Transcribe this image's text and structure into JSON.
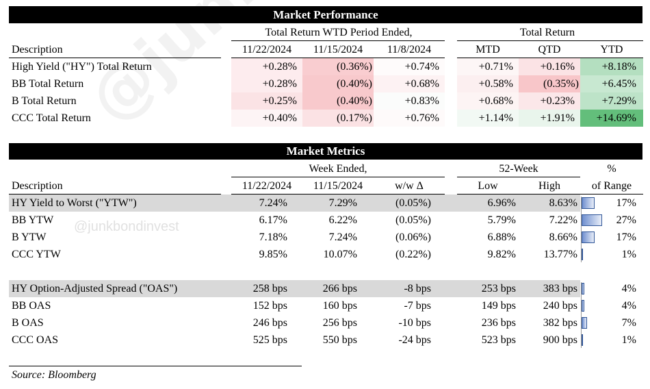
{
  "watermark": "@junkbondinvest",
  "perf": {
    "title": "Market Performance",
    "group_wtd": "Total Return WTD Period Ended,",
    "group_total": "Total Return",
    "col_desc": "Description",
    "cols": [
      "11/22/2024",
      "11/15/2024",
      "11/8/2024",
      "MTD",
      "QTD",
      "YTD"
    ],
    "rows": [
      {
        "label": "High Yield (\"HY\") Total Return",
        "v": [
          "+0.28%",
          "(0.36%)",
          "+0.74%",
          "+0.71%",
          "+0.16%",
          "+8.18%"
        ]
      },
      {
        "label": "BB Total Return",
        "v": [
          "+0.28%",
          "(0.40%)",
          "+0.68%",
          "+0.58%",
          "(0.35%)",
          "+6.45%"
        ]
      },
      {
        "label": "B Total Return",
        "v": [
          "+0.25%",
          "(0.40%)",
          "+0.83%",
          "+0.68%",
          "+0.23%",
          "+7.29%"
        ]
      },
      {
        "label": "CCC Total Return",
        "v": [
          "+0.40%",
          "(0.17%)",
          "+0.76%",
          "+1.14%",
          "+1.91%",
          "+14.69%"
        ]
      }
    ]
  },
  "metrics": {
    "title": "Market Metrics",
    "group_week": "Week Ended,",
    "group_52": "52-Week",
    "pct_top": "%",
    "pct_bottom": "of Range",
    "col_desc": "Description",
    "cols": [
      "11/22/2024",
      "11/15/2024",
      "w/w Δ",
      "Low",
      "High"
    ],
    "rows": [
      {
        "label": "HY Yield to Worst (\"YTW\")",
        "v": [
          "7.24%",
          "7.29%",
          "(0.05%)",
          "6.96%",
          "8.63%"
        ],
        "range": "17%",
        "range_value": 17
      },
      {
        "label": "BB YTW",
        "v": [
          "6.17%",
          "6.22%",
          "(0.05%)",
          "5.79%",
          "7.22%"
        ],
        "range": "27%",
        "range_value": 27
      },
      {
        "label": "B YTW",
        "v": [
          "7.18%",
          "7.24%",
          "(0.06%)",
          "6.88%",
          "8.66%"
        ],
        "range": "17%",
        "range_value": 17
      },
      {
        "label": "CCC YTW",
        "v": [
          "9.85%",
          "10.07%",
          "(0.22%)",
          "9.82%",
          "13.77%"
        ],
        "range": "1%",
        "range_value": 1
      },
      {
        "label": "HY Option-Adjusted Spread (\"OAS\")",
        "v": [
          "258 bps",
          "266 bps",
          "-8 bps",
          "253 bps",
          "383 bps"
        ],
        "range": "4%",
        "range_value": 4
      },
      {
        "label": "BB OAS",
        "v": [
          "152 bps",
          "160 bps",
          "-7 bps",
          "149 bps",
          "240 bps"
        ],
        "range": "4%",
        "range_value": 4
      },
      {
        "label": "B OAS",
        "v": [
          "246 bps",
          "256 bps",
          "-10 bps",
          "236 bps",
          "382 bps"
        ],
        "range": "7%",
        "range_value": 7
      },
      {
        "label": "CCC OAS",
        "v": [
          "525 bps",
          "550 bps",
          "-24 bps",
          "523 bps",
          "900 bps"
        ],
        "range": "1%",
        "range_value": 1
      }
    ]
  },
  "source": "Source: Bloomberg",
  "colors": {
    "red_shade": "#f8c9cc",
    "green_shade": "#63be7b",
    "band_gray": "#d9d9d9",
    "bar_blue": "#2f5597"
  }
}
